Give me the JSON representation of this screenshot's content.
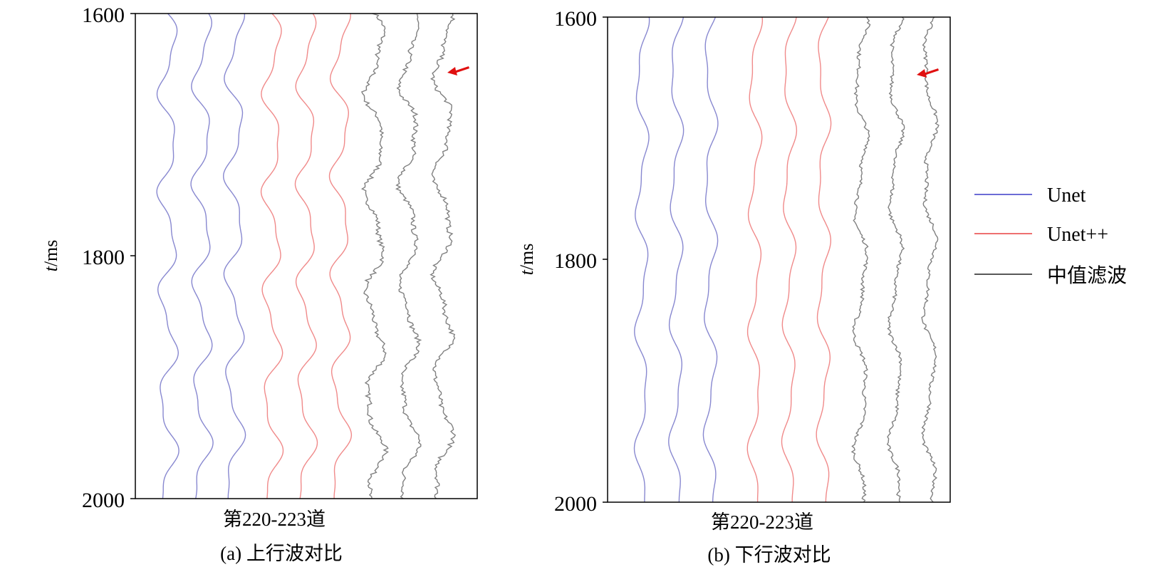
{
  "chart_data": [
    {
      "id": "a",
      "type": "line",
      "caption": "(a) 上行波对比",
      "xlabel": "第220-223道",
      "ylabel_var": "t",
      "ylabel_unit": "/ms",
      "ylim": [
        1600,
        2000
      ],
      "y_ticks": [
        "1600",
        "1800",
        "2000"
      ],
      "y_inverted": true,
      "grid": false,
      "annotation": "red arrow pointing at median-filter trace near t=1645 ms",
      "series": [
        {
          "name": "Unet",
          "color": "#8888d0",
          "traces": 3,
          "centers": [
            0.095,
            0.195,
            0.29
          ],
          "amplitude": 0.03
        },
        {
          "name": "Unet++",
          "color": "#f08a8a",
          "traces": 3,
          "centers": [
            0.4,
            0.5,
            0.6
          ],
          "amplitude": 0.03
        },
        {
          "name": "中值滤波",
          "color": "#808080",
          "traces": 3,
          "centers": [
            0.7,
            0.8,
            0.9
          ],
          "amplitude": 0.03,
          "noisy": true
        }
      ]
    },
    {
      "id": "b",
      "type": "line",
      "caption": "(b) 下行波对比",
      "xlabel": "第220-223道",
      "ylabel_var": "t",
      "ylabel_unit": "/ms",
      "ylim": [
        1600,
        2000
      ],
      "y_ticks": [
        "1600",
        "1800",
        "2000"
      ],
      "y_inverted": true,
      "grid": false,
      "annotation": "red arrow pointing at median-filter trace near t=1645 ms",
      "series": [
        {
          "name": "Unet",
          "color": "#8888d0",
          "traces": 3,
          "centers": [
            0.1,
            0.2,
            0.3
          ],
          "amplitude": 0.022
        },
        {
          "name": "Unet++",
          "color": "#f08a8a",
          "traces": 3,
          "centers": [
            0.43,
            0.53,
            0.63
          ],
          "amplitude": 0.022
        },
        {
          "name": "中值滤波",
          "color": "#808080",
          "traces": 3,
          "centers": [
            0.74,
            0.84,
            0.94
          ],
          "amplitude": 0.022,
          "noisy": true
        }
      ]
    }
  ],
  "legend": {
    "placement": "right",
    "items": [
      {
        "label": "Unet",
        "color": "#3b3bc8"
      },
      {
        "label": "Unet++",
        "color": "#e84040"
      },
      {
        "label": "中值滤波",
        "color": "#202020"
      }
    ]
  },
  "colors": {
    "arrow": "#e01010",
    "axis": "#000000"
  }
}
